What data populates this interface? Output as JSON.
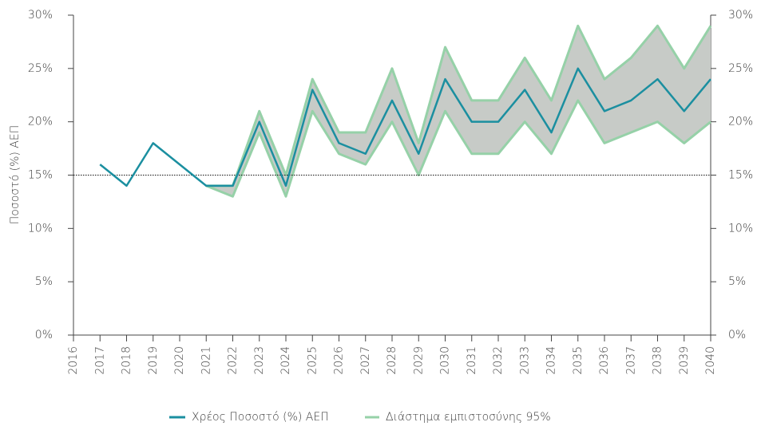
{
  "chart_data": {
    "type": "line",
    "y_label": "Ποσοστό (%) ΑΕΠ",
    "categories": [
      "2016",
      "2017",
      "2018",
      "2019",
      "2020",
      "2021",
      "2022",
      "2023",
      "2024",
      "2025",
      "2026",
      "2027",
      "2028",
      "2029",
      "2030",
      "2031",
      "2032",
      "2033",
      "2034",
      "2035",
      "2036",
      "2037",
      "2038",
      "2039",
      "2040"
    ],
    "series": [
      {
        "name": "Χρέος Ποσοστό (%) ΑΕΠ",
        "color": "#1b8fa0",
        "values": [
          null,
          16,
          14,
          18,
          16,
          14,
          14,
          20,
          14,
          23,
          18,
          17,
          22,
          17,
          24,
          20,
          20,
          23,
          19,
          25,
          21,
          22,
          24,
          21,
          24
        ]
      },
      {
        "name": "Διάστημα εμπιστοσύνης 95%",
        "color": "#96d1a8",
        "fill": "#c7cbc7",
        "upper": [
          null,
          null,
          null,
          null,
          null,
          14,
          14,
          21,
          15,
          24,
          19,
          19,
          25,
          18,
          27,
          22,
          22,
          26,
          22,
          29,
          24,
          26,
          29,
          25,
          29
        ],
        "lower": [
          null,
          null,
          null,
          null,
          null,
          14,
          13,
          19,
          13,
          21,
          17,
          16,
          20,
          15,
          21,
          17,
          17,
          20,
          17,
          22,
          18,
          19,
          20,
          18,
          20
        ]
      }
    ],
    "reference_line": 15,
    "ylim": [
      0,
      30
    ],
    "yticks": [
      {
        "value": 0,
        "label": "0%"
      },
      {
        "value": 5,
        "label": "5%"
      },
      {
        "value": 10,
        "label": "10%"
      },
      {
        "value": 15,
        "label": "15%"
      },
      {
        "value": 20,
        "label": "20%"
      },
      {
        "value": 25,
        "label": "25%"
      },
      {
        "value": 30,
        "label": "30%"
      }
    ],
    "y2lim": [
      0,
      30
    ],
    "y2ticks": [
      {
        "value": 0,
        "label": "0%"
      },
      {
        "value": 5,
        "label": "5%"
      },
      {
        "value": 10,
        "label": "10%"
      },
      {
        "value": 15,
        "label": "15%"
      },
      {
        "value": 20,
        "label": "20%"
      },
      {
        "value": 25,
        "label": "25%"
      },
      {
        "value": 30,
        "label": "30%"
      }
    ],
    "grid": false,
    "legend": "bottom"
  }
}
